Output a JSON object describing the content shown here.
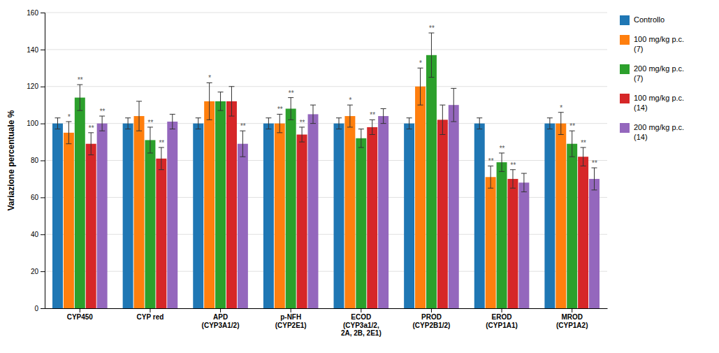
{
  "chart_data": {
    "type": "bar",
    "ylabel": "Variazione percentuale %",
    "categories": [
      "CYP450",
      "CYP red",
      "APD\n(CYP3A1/2)",
      "p-NFH\n(CYP2E1)",
      "ECOD\n(CYP3a1/2,\n2A, 2B, 2E1)",
      "PROD\n(CYP2B1/2)",
      "EROD\n(CYP1A1)",
      "MROD\n(CYP1A2)"
    ],
    "series": [
      {
        "name": "Controllo",
        "values": [
          100,
          100,
          100,
          100,
          100,
          100,
          100,
          100
        ],
        "errors": [
          3,
          3,
          3,
          3,
          3,
          3,
          3,
          3
        ],
        "significance": [
          null,
          null,
          null,
          null,
          null,
          null,
          null,
          null
        ]
      },
      {
        "name": "100 mg/kg p.c.\n(7)",
        "values": [
          95,
          104,
          112,
          100,
          104,
          120,
          71,
          100
        ],
        "errors": [
          6,
          8,
          10,
          5,
          6,
          10,
          6,
          6
        ],
        "significance": [
          "*",
          null,
          "*",
          "**",
          "*",
          "*",
          "**",
          "*"
        ]
      },
      {
        "name": "200 mg/kg p.c.\n(7)",
        "values": [
          114,
          91,
          112,
          108,
          92,
          137,
          79,
          89
        ],
        "errors": [
          7,
          7,
          5,
          6,
          5,
          12,
          5,
          7
        ],
        "significance": [
          "**",
          "**",
          null,
          "**",
          null,
          "**",
          "**",
          "**"
        ]
      },
      {
        "name": "100 mg/kg p.c.\n(14)",
        "values": [
          89,
          81,
          112,
          94,
          98,
          102,
          70,
          82
        ],
        "errors": [
          6,
          6,
          8,
          4,
          4,
          8,
          5,
          5
        ],
        "significance": [
          "**",
          "**",
          null,
          "**",
          "**",
          null,
          "**",
          "**"
        ]
      },
      {
        "name": "200 mg/kg p.c.\n(14)",
        "values": [
          100,
          101,
          89,
          105,
          104,
          110,
          68,
          70
        ],
        "errors": [
          4,
          4,
          7,
          5,
          4,
          9,
          5,
          6
        ],
        "significance": [
          "**",
          null,
          "**",
          null,
          null,
          null,
          null,
          "**"
        ]
      }
    ],
    "ylim": [
      0,
      160
    ],
    "yticks": [
      0,
      20,
      40,
      60,
      80,
      100,
      120,
      140,
      160
    ],
    "grid": true,
    "legend": "right"
  }
}
